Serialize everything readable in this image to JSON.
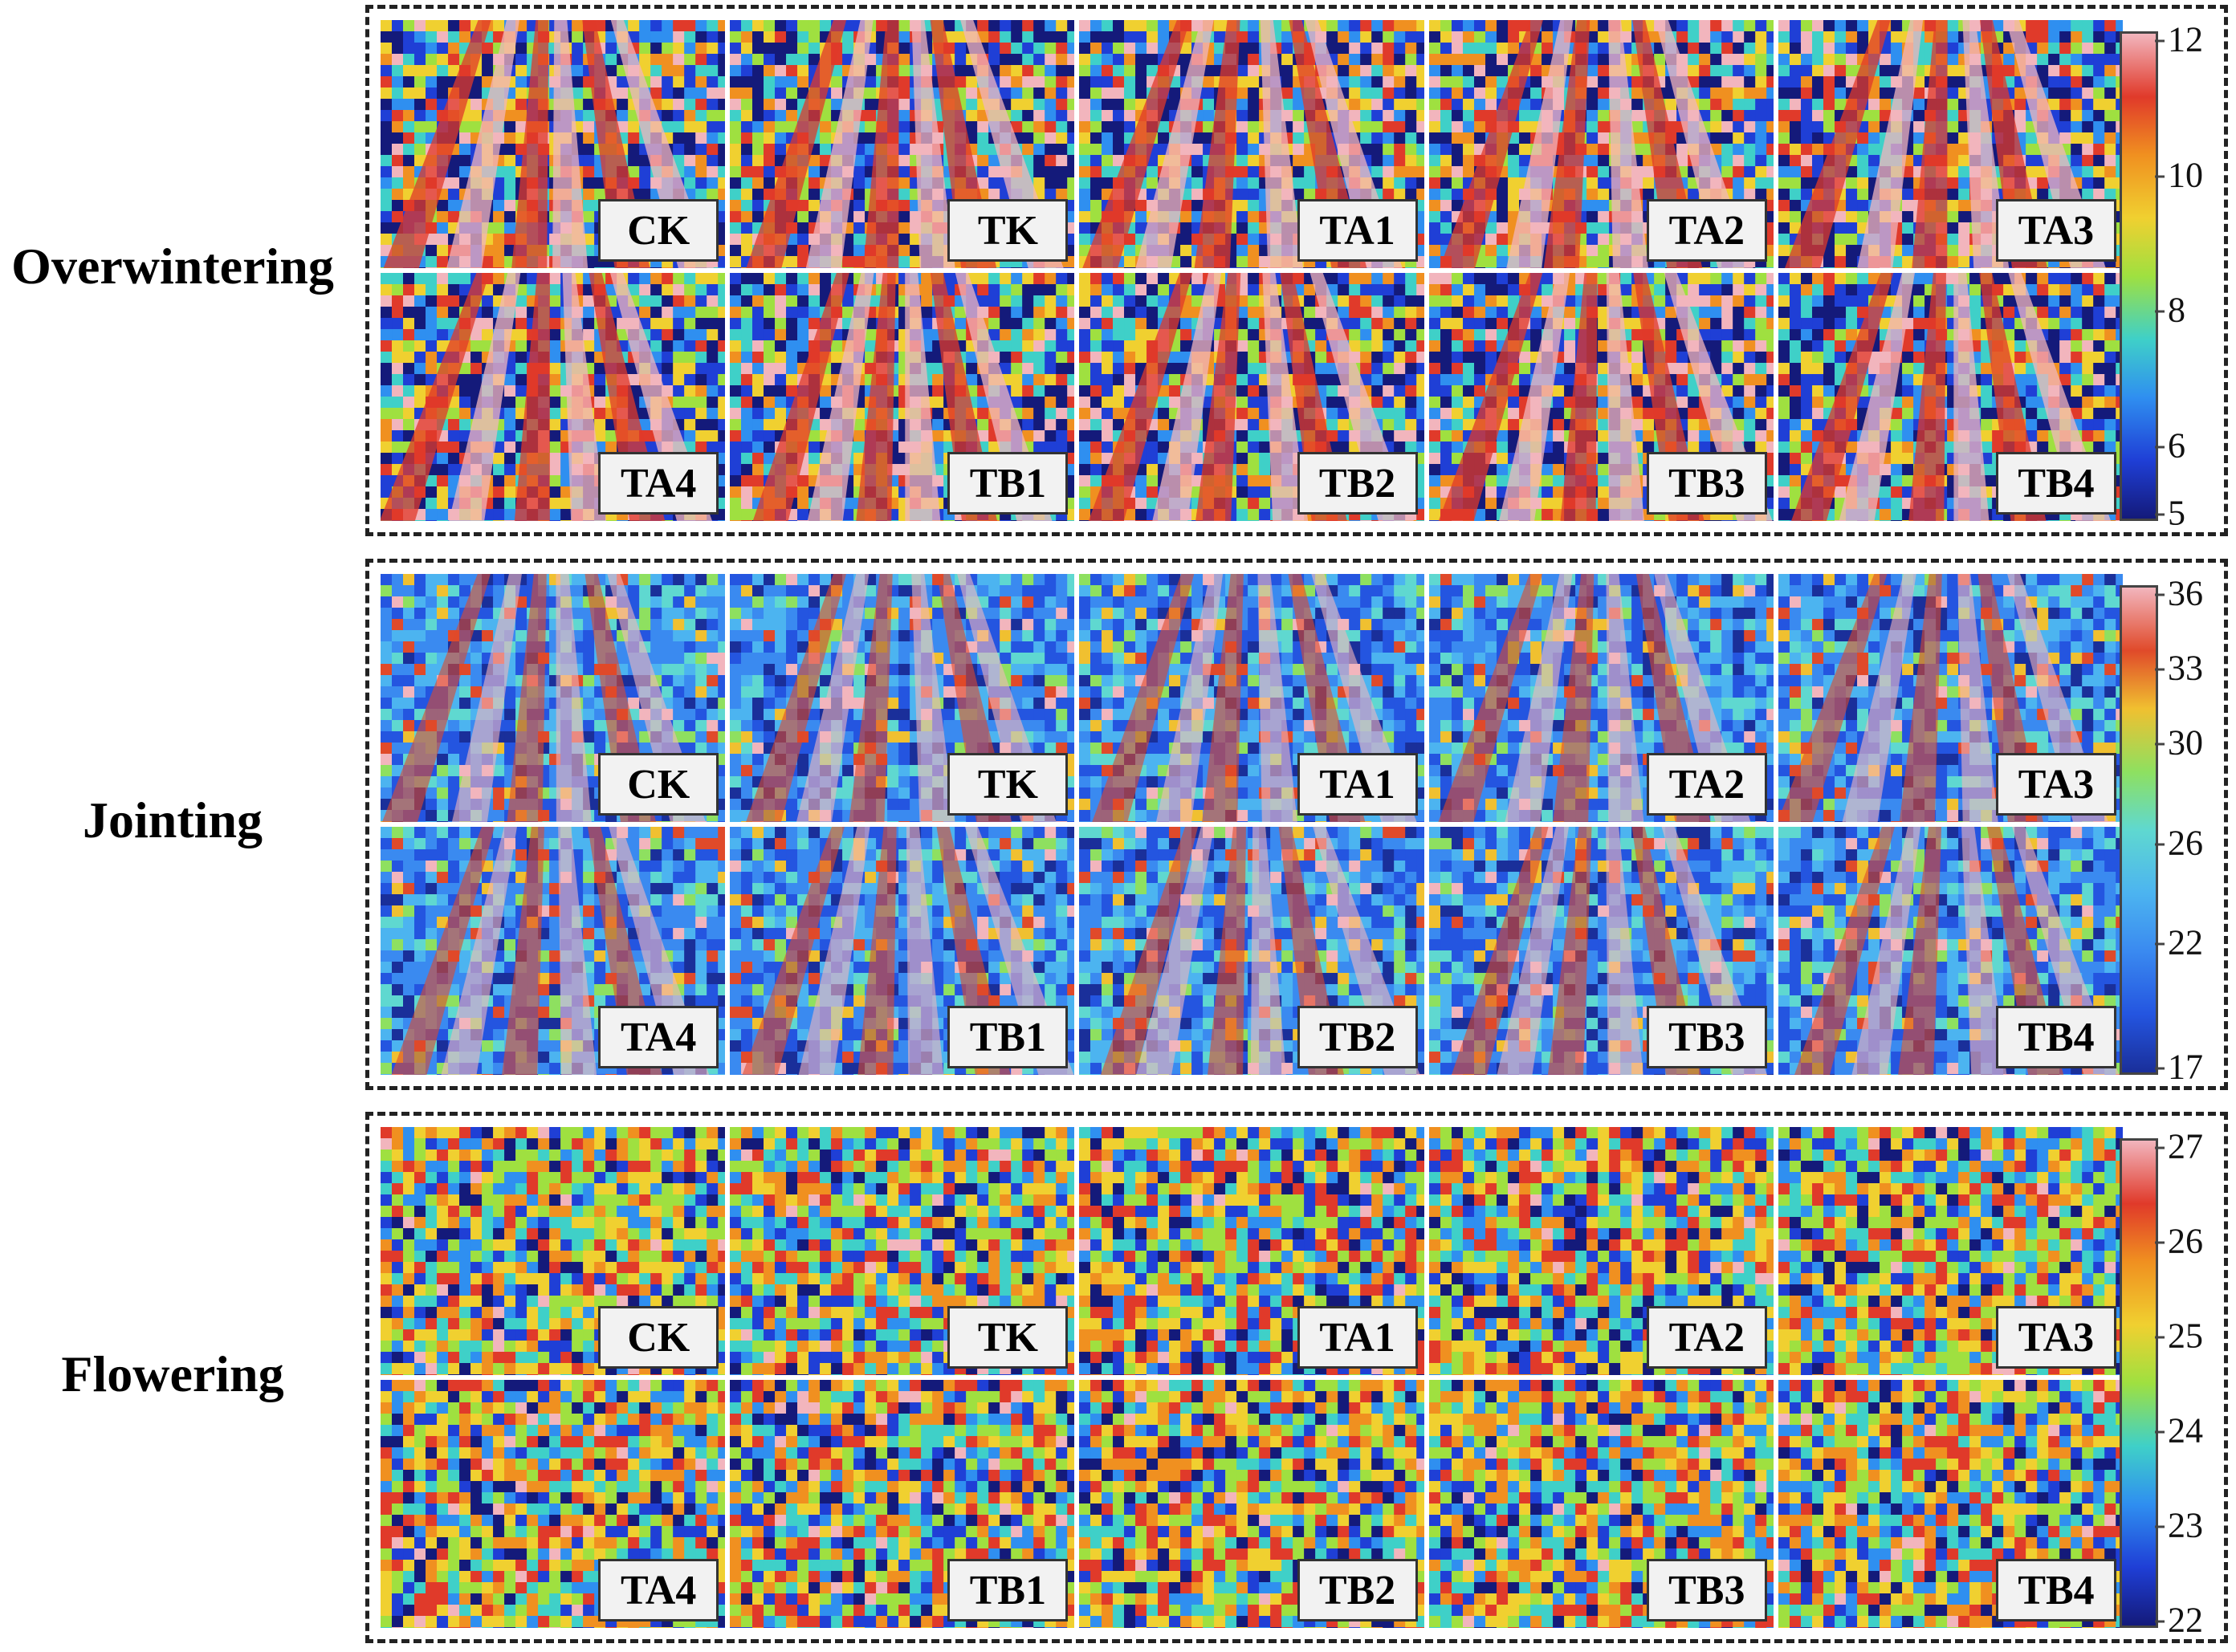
{
  "stages": [
    {
      "title": "Overwintering",
      "palette": [
        "#141a7a",
        "#1f3fd6",
        "#2f8ff0",
        "#3fd0c8",
        "#9fe040",
        "#f0d030",
        "#f09020",
        "#e03a2a",
        "#f2b5bd"
      ],
      "weights": [
        0.18,
        0.14,
        0.1,
        0.12,
        0.1,
        0.1,
        0.09,
        0.09,
        0.08
      ],
      "colorbar": {
        "min": 5,
        "max": 12,
        "ticks": [
          "12",
          "10",
          "8",
          "6",
          "5"
        ],
        "tick_values": [
          12,
          10,
          8,
          6,
          5
        ]
      },
      "labels": [
        "CK",
        "TK",
        "TA1",
        "TA2",
        "TA3",
        "TA4",
        "TB1",
        "TB2",
        "TB3",
        "TB4"
      ]
    },
    {
      "title": "Jointing",
      "palette": [
        "#1a2f9a",
        "#2455e0",
        "#3a8af0",
        "#4cb4f0",
        "#5fd8d0",
        "#8ee060",
        "#f0c030",
        "#e04a2a",
        "#f2b5bd"
      ],
      "weights": [
        0.08,
        0.24,
        0.24,
        0.18,
        0.1,
        0.05,
        0.04,
        0.04,
        0.03
      ],
      "colorbar": {
        "min": 17,
        "max": 36,
        "ticks": [
          "36",
          "33",
          "30",
          "26",
          "22",
          "17"
        ],
        "tick_values": [
          36,
          33,
          30,
          26,
          22,
          17
        ]
      },
      "labels": [
        "CK",
        "TK",
        "TA1",
        "TA2",
        "TA3",
        "TA4",
        "TB1",
        "TB2",
        "TB3",
        "TB4"
      ]
    },
    {
      "title": "Flowering",
      "palette": [
        "#141a7a",
        "#1f3fd6",
        "#2f8ff0",
        "#3fd0c8",
        "#9fe040",
        "#f0d030",
        "#f09020",
        "#e03a2a",
        "#f2b5bd"
      ],
      "weights": [
        0.1,
        0.1,
        0.1,
        0.12,
        0.14,
        0.14,
        0.14,
        0.13,
        0.03
      ],
      "colorbar": {
        "min": 22,
        "max": 27,
        "ticks": [
          "27",
          "26",
          "25",
          "24",
          "23",
          "22"
        ],
        "tick_values": [
          27,
          26,
          25,
          24,
          23,
          22
        ]
      },
      "labels": [
        "CK",
        "TK",
        "TA1",
        "TA2",
        "TA3",
        "TA4",
        "TB1",
        "TB2",
        "TB3",
        "TB4"
      ]
    }
  ]
}
